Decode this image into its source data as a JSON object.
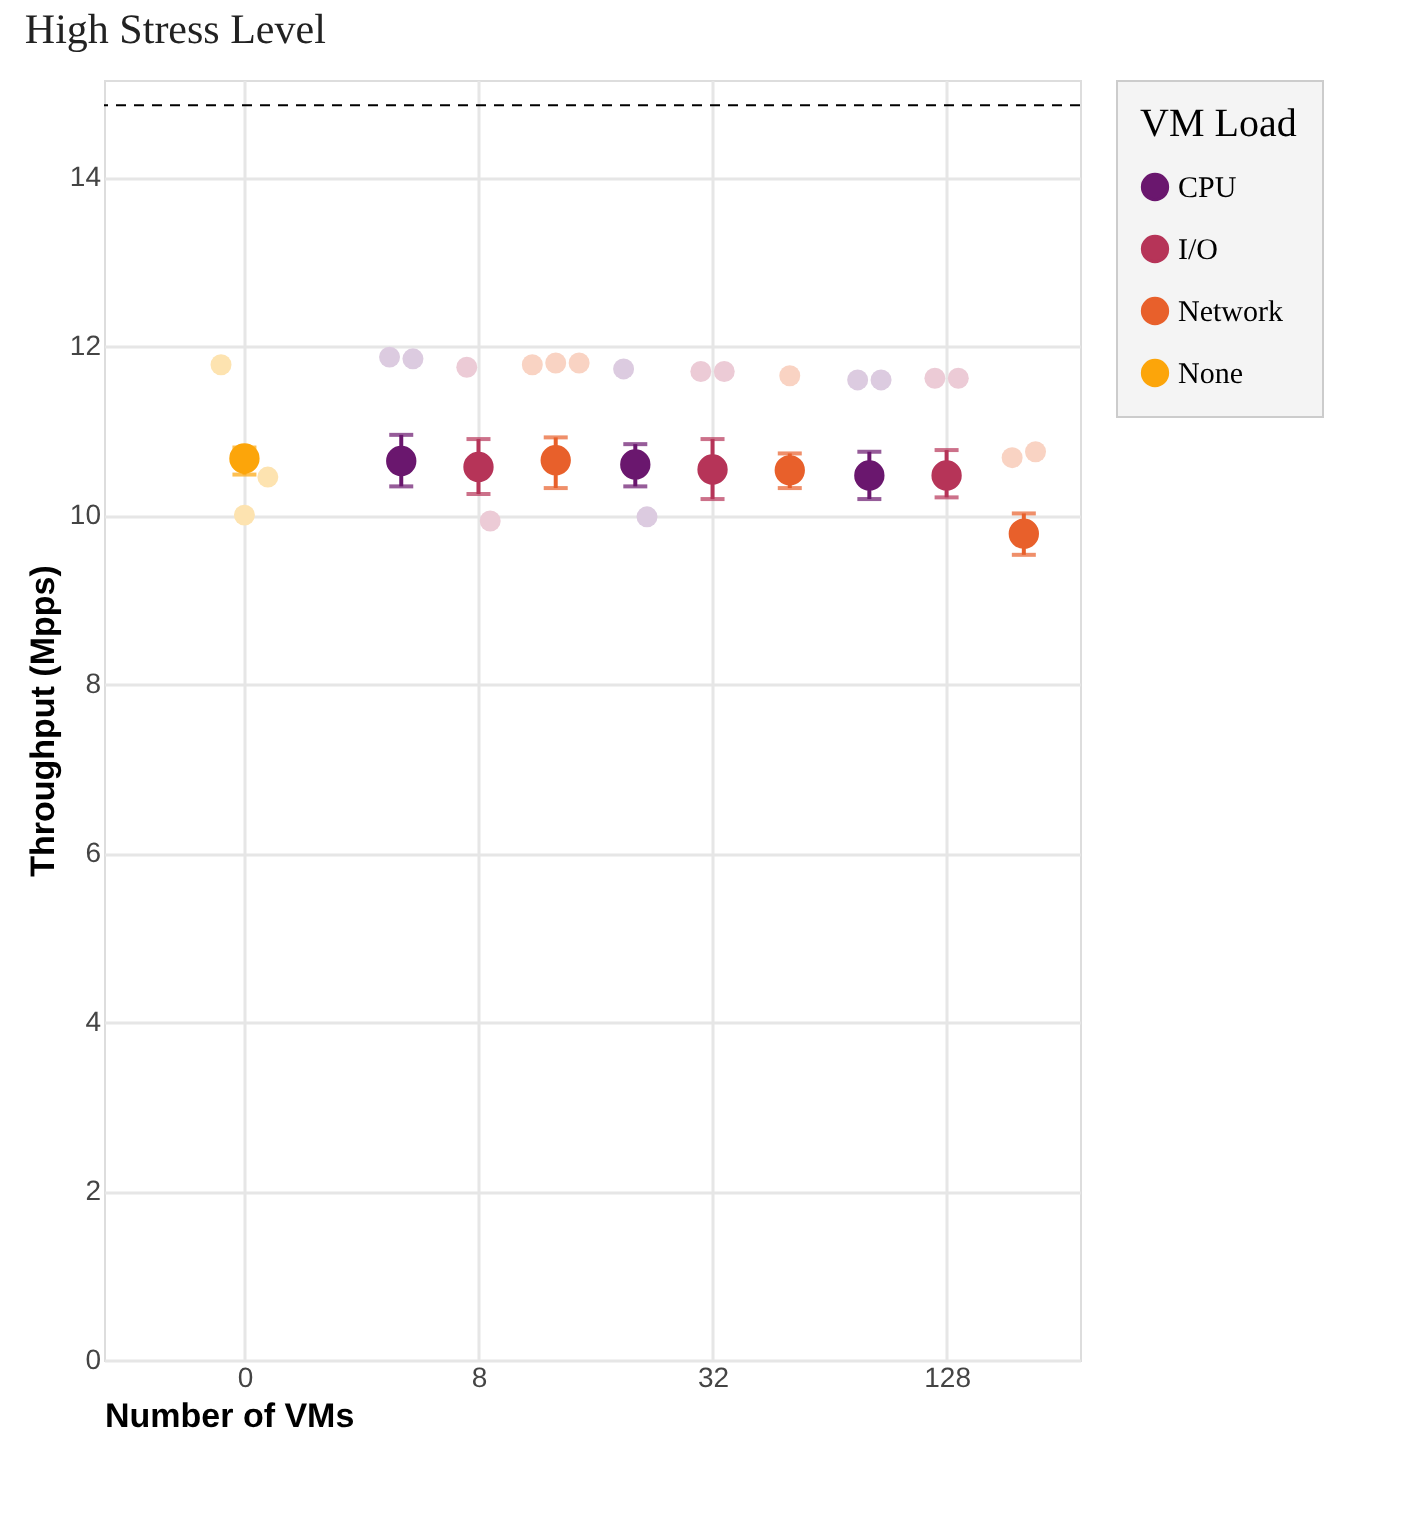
{
  "chart_data": {
    "type": "scatter",
    "title": "High Stress Level",
    "xlabel": "Number of VMs",
    "ylabel": "Throughput (Mpps)",
    "legend_title": "VM Load",
    "categories": [
      "0",
      "8",
      "32",
      "128"
    ],
    "ylim": [
      0,
      15.15
    ],
    "yticks": [
      0,
      2,
      4,
      6,
      8,
      10,
      12,
      14
    ],
    "grid": true,
    "legend": "right",
    "marker": "circle",
    "ref_lines": [
      {
        "axis": "y",
        "value": 14.85,
        "color": "#000000",
        "line_style": "dashed"
      }
    ],
    "series": [
      {
        "name": "CPU",
        "color": "#6a176e",
        "x": [
          "8",
          "32",
          "128"
        ],
        "values": [
          10.64,
          10.6,
          10.47
        ],
        "errors": [
          [
            10.34,
            10.95
          ],
          [
            10.34,
            10.84
          ],
          [
            10.19,
            10.75
          ]
        ]
      },
      {
        "name": "I/O",
        "color": "#b63458",
        "x": [
          "8",
          "32",
          "128"
        ],
        "values": [
          10.57,
          10.54,
          10.47
        ],
        "errors": [
          [
            10.25,
            10.9
          ],
          [
            10.19,
            10.9
          ],
          [
            10.21,
            10.77
          ]
        ]
      },
      {
        "name": "Network",
        "color": "#e8602b",
        "x": [
          "8",
          "32",
          "128"
        ],
        "values": [
          10.65,
          10.53,
          9.78
        ],
        "errors": [
          [
            10.32,
            10.92
          ],
          [
            10.32,
            10.73
          ],
          [
            9.53,
            10.02
          ]
        ]
      },
      {
        "name": "None",
        "color": "#fca50a",
        "x": [
          "0"
        ],
        "values": [
          10.67
        ],
        "errors": [
          [
            10.48,
            10.8
          ]
        ]
      },
      {
        "color": "#dccbe0",
        "x": [
          "8",
          "8",
          "32",
          "32",
          "128",
          "128"
        ],
        "values": [
          11.87,
          11.85,
          11.73,
          9.98,
          11.6,
          11.6
        ]
      },
      {
        "color": "#eccbd6",
        "x": [
          "8",
          "8",
          "32",
          "32",
          "128",
          "128"
        ],
        "values": [
          11.75,
          9.93,
          11.7,
          11.7,
          11.62,
          11.62
        ]
      },
      {
        "color": "#f9d3c3",
        "x": [
          "8",
          "8",
          "8",
          "32",
          "128",
          "128"
        ],
        "values": [
          11.78,
          11.8,
          11.8,
          11.65,
          10.68,
          10.75
        ]
      },
      {
        "color": "#fde3b0",
        "x": [
          "0",
          "0",
          "0"
        ],
        "values": [
          11.78,
          10.0,
          10.45
        ]
      }
    ]
  }
}
